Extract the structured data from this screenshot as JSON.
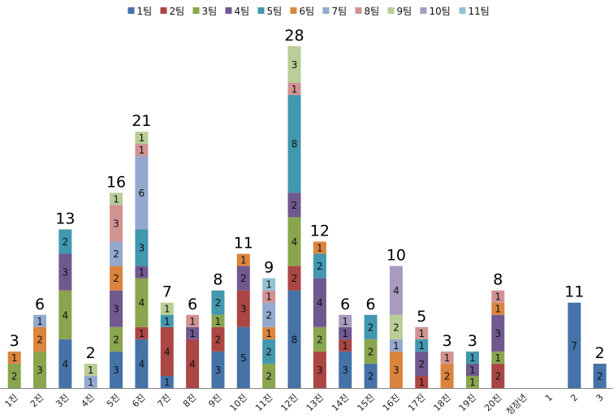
{
  "chart_data": {
    "type": "bar",
    "stacked": true,
    "title": "",
    "xlabel": "",
    "ylabel": "",
    "ylim": [
      0,
      28
    ],
    "grid": false,
    "legend_position": "top",
    "categories": [
      "1진",
      "2진",
      "3진",
      "4진",
      "5진",
      "6진",
      "7진",
      "8진",
      "9진",
      "10진",
      "11진",
      "12진",
      "13진",
      "14진",
      "15진",
      "16진",
      "17진",
      "18진",
      "19진",
      "20진",
      "청장년",
      "1",
      "2",
      "3"
    ],
    "totals": [
      3,
      6,
      13,
      2,
      16,
      21,
      7,
      6,
      8,
      11,
      9,
      28,
      12,
      6,
      6,
      10,
      5,
      3,
      3,
      8,
      null,
      null,
      11,
      2
    ],
    "series": [
      {
        "name": "1팀",
        "color": "#4572A7",
        "values": [
          0,
          0,
          4,
          0,
          3,
          4,
          1,
          0,
          3,
          5,
          0,
          8,
          0,
          3,
          2,
          0,
          0,
          0,
          0,
          0,
          0,
          0,
          7,
          2
        ]
      },
      {
        "name": "2팀",
        "color": "#AA4643",
        "values": [
          0,
          0,
          0,
          0,
          0,
          1,
          4,
          4,
          2,
          3,
          0,
          2,
          3,
          1,
          0,
          0,
          1,
          0,
          0,
          2,
          0,
          0,
          0,
          0
        ]
      },
      {
        "name": "3팀",
        "color": "#89A54E",
        "values": [
          2,
          3,
          4,
          0,
          2,
          4,
          0,
          0,
          1,
          0,
          2,
          4,
          2,
          0,
          2,
          0,
          0,
          0,
          1,
          1,
          0,
          0,
          0,
          0
        ]
      },
      {
        "name": "4팀",
        "color": "#71588F",
        "values": [
          0,
          0,
          3,
          0,
          3,
          1,
          0,
          1,
          0,
          2,
          0,
          2,
          4,
          1,
          0,
          0,
          2,
          0,
          1,
          3,
          0,
          0,
          0,
          0
        ]
      },
      {
        "name": "5팀",
        "color": "#4198AF",
        "values": [
          0,
          0,
          2,
          0,
          0,
          3,
          1,
          0,
          2,
          0,
          2,
          8,
          2,
          0,
          2,
          0,
          1,
          0,
          1,
          0,
          0,
          0,
          0,
          0
        ]
      },
      {
        "name": "6팀",
        "color": "#DB843D",
        "values": [
          1,
          2,
          0,
          0,
          2,
          0,
          0,
          0,
          0,
          1,
          1,
          0,
          1,
          0,
          0,
          3,
          0,
          2,
          0,
          1,
          0,
          0,
          0,
          0
        ]
      },
      {
        "name": "7팀",
        "color": "#93A9CF",
        "values": [
          0,
          1,
          0,
          1,
          2,
          6,
          0,
          0,
          0,
          0,
          2,
          0,
          0,
          0,
          0,
          1,
          0,
          0,
          0,
          0,
          0,
          0,
          0,
          0
        ]
      },
      {
        "name": "8팀",
        "color": "#D19392",
        "values": [
          0,
          0,
          0,
          0,
          3,
          1,
          0,
          1,
          0,
          0,
          1,
          1,
          0,
          0,
          0,
          0,
          1,
          1,
          0,
          1,
          0,
          0,
          0,
          0
        ]
      },
      {
        "name": "9팀",
        "color": "#B9CD96",
        "values": [
          0,
          0,
          0,
          1,
          1,
          1,
          1,
          0,
          0,
          0,
          0,
          3,
          0,
          0,
          0,
          2,
          0,
          0,
          0,
          0,
          0,
          0,
          0,
          0
        ]
      },
      {
        "name": "10팀",
        "color": "#A99BBD",
        "values": [
          0,
          0,
          0,
          0,
          0,
          0,
          0,
          0,
          0,
          0,
          0,
          0,
          0,
          1,
          0,
          4,
          0,
          0,
          0,
          0,
          0,
          0,
          0,
          0
        ]
      },
      {
        "name": "11팀",
        "color": "#92C3D5",
        "values": [
          0,
          0,
          0,
          0,
          0,
          0,
          0,
          0,
          0,
          0,
          1,
          0,
          0,
          0,
          0,
          0,
          0,
          0,
          0,
          0,
          0,
          0,
          0,
          0
        ]
      }
    ]
  }
}
